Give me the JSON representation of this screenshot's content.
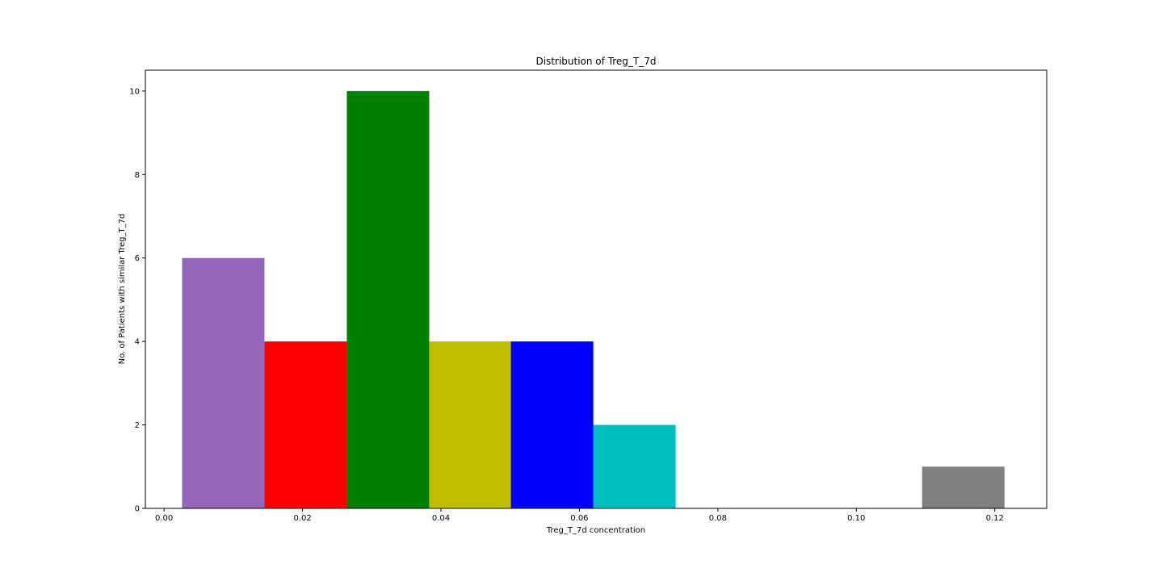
{
  "chart_data": {
    "type": "bar",
    "title": "Distribution of Treg_T_7d",
    "xlabel": "Treg_T_7d concentration",
    "ylabel": "No. of Patients with similar Treg_T_7d",
    "xlim": [
      -0.0027,
      0.1275
    ],
    "ylim": [
      0,
      10.5
    ],
    "x_ticks": [
      0.0,
      0.02,
      0.04,
      0.06,
      0.08,
      0.1,
      0.12
    ],
    "x_tick_labels": [
      "0.00",
      "0.02",
      "0.04",
      "0.06",
      "0.08",
      "0.10",
      "0.12"
    ],
    "y_ticks": [
      0,
      2,
      4,
      6,
      8,
      10
    ],
    "y_tick_labels": [
      "0",
      "2",
      "4",
      "6",
      "8",
      "10"
    ],
    "grid": false,
    "bars": [
      {
        "x_start": 0.0026,
        "x_end": 0.0145,
        "value": 6,
        "color": "#9467bd"
      },
      {
        "x_start": 0.0145,
        "x_end": 0.0264,
        "value": 4,
        "color": "#ff0000"
      },
      {
        "x_start": 0.0264,
        "x_end": 0.0383,
        "value": 10,
        "color": "#008000"
      },
      {
        "x_start": 0.0383,
        "x_end": 0.0501,
        "value": 4,
        "color": "#bfbf00"
      },
      {
        "x_start": 0.0501,
        "x_end": 0.062,
        "value": 4,
        "color": "#0000ff"
      },
      {
        "x_start": 0.062,
        "x_end": 0.0739,
        "value": 2,
        "color": "#00bfbf"
      },
      {
        "x_start": 0.1095,
        "x_end": 0.1214,
        "value": 1,
        "color": "#808080"
      }
    ]
  }
}
